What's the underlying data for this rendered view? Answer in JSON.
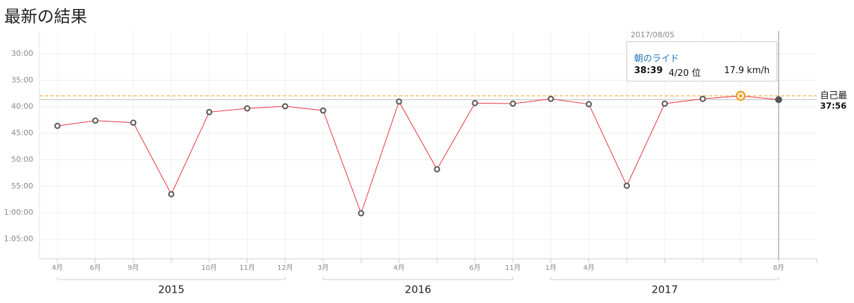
{
  "chart_data": {
    "type": "line",
    "title": "最新の結果",
    "categories": [
      "4月",
      "6月",
      "9月",
      null,
      "10月",
      "11月",
      "12月",
      "3月",
      null,
      "4月",
      null,
      "6月",
      "11月",
      "1月",
      "4月",
      null,
      null,
      null,
      null,
      "8月"
    ],
    "year_groups": [
      {
        "label": "2015",
        "start": 0,
        "end": 6
      },
      {
        "label": "2016",
        "start": 7,
        "end": 12
      },
      {
        "label": "2017",
        "start": 13,
        "end": 19
      }
    ],
    "series": [
      {
        "color": "#e8303a",
        "values": [
          43.6,
          42.6,
          43.0,
          56.5,
          41.0,
          40.3,
          39.9,
          40.7,
          60.1,
          39.0,
          51.8,
          39.3,
          39.4,
          38.5,
          39.5,
          54.9,
          39.4,
          38.5,
          37.93,
          38.65
        ]
      }
    ],
    "ylim": [
      25.7,
      68.7
    ],
    "y_inverted": true,
    "yticks": [
      {
        "value": 30,
        "label": "30:00"
      },
      {
        "value": 35,
        "label": "35:00"
      },
      {
        "value": 40,
        "label": "40:00"
      },
      {
        "value": 45,
        "label": "45:00"
      },
      {
        "value": 50,
        "label": "50:00"
      },
      {
        "value": 55,
        "label": "55:00"
      },
      {
        "value": 60,
        "label": "1:00:00"
      },
      {
        "value": 65,
        "label": "1:05:00"
      }
    ],
    "grid": true,
    "personal_best": {
      "label": "自己最",
      "value": 37.93,
      "value_label": "37:56",
      "color": "#f0a020"
    },
    "highlight_index": 18,
    "tooltip": {
      "date": "2017/08/05",
      "name": "朝のライド",
      "time": "38:39",
      "rank": "4/20 位",
      "speed": "17.9 km/h"
    }
  }
}
